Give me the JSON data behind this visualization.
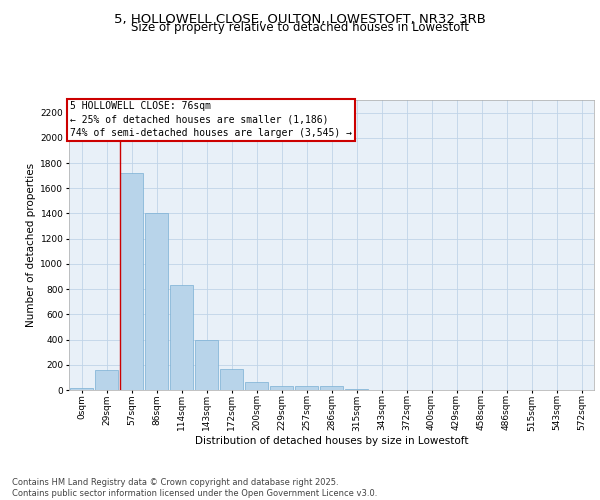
{
  "title_line1": "5, HOLLOWELL CLOSE, OULTON, LOWESTOFT, NR32 3RB",
  "title_line2": "Size of property relative to detached houses in Lowestoft",
  "xlabel": "Distribution of detached houses by size in Lowestoft",
  "ylabel": "Number of detached properties",
  "bar_color": "#b8d4ea",
  "bar_edge_color": "#7aafd4",
  "categories": [
    "0sqm",
    "29sqm",
    "57sqm",
    "86sqm",
    "114sqm",
    "143sqm",
    "172sqm",
    "200sqm",
    "229sqm",
    "257sqm",
    "286sqm",
    "315sqm",
    "343sqm",
    "372sqm",
    "400sqm",
    "429sqm",
    "458sqm",
    "486sqm",
    "515sqm",
    "543sqm",
    "572sqm"
  ],
  "values": [
    15,
    155,
    1720,
    1400,
    835,
    400,
    165,
    65,
    35,
    28,
    28,
    5,
    0,
    0,
    0,
    0,
    0,
    0,
    0,
    0,
    0
  ],
  "ylim": [
    0,
    2300
  ],
  "yticks": [
    0,
    200,
    400,
    600,
    800,
    1000,
    1200,
    1400,
    1600,
    1800,
    2000,
    2200
  ],
  "property_bar_index": 2,
  "annotation_title": "5 HOLLOWELL CLOSE: 76sqm",
  "annotation_line1": "← 25% of detached houses are smaller (1,186)",
  "annotation_line2": "74% of semi-detached houses are larger (3,545) →",
  "annotation_box_color": "#ffffff",
  "annotation_box_edge_color": "#cc0000",
  "grid_color": "#c0d4e8",
  "bg_color": "#e8f0f8",
  "footer_line1": "Contains HM Land Registry data © Crown copyright and database right 2025.",
  "footer_line2": "Contains public sector information licensed under the Open Government Licence v3.0.",
  "red_line_color": "#cc0000",
  "title_fontsize": 9.5,
  "subtitle_fontsize": 8.5,
  "axis_label_fontsize": 7.5,
  "tick_fontsize": 6.5,
  "annotation_fontsize": 7,
  "footer_fontsize": 6
}
